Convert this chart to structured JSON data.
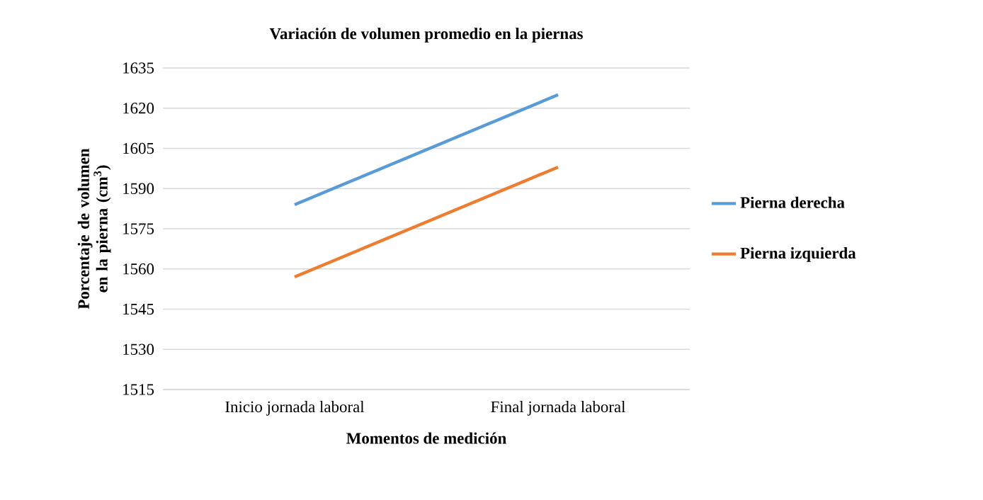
{
  "chart_data": {
    "type": "line",
    "title": "Variación de volumen promedio en la piernas",
    "xlabel": "Momentos de medición",
    "ylabel": "Porcentaje de volumen en la pierna (cm$^{3}$)",
    "categories": [
      "Inicio jornada laboral",
      "Final jornada laboral"
    ],
    "series": [
      {
        "name": "Pierna derecha",
        "color": "#5b9bd5",
        "values": [
          1584,
          1625
        ]
      },
      {
        "name": "Pierna izquierda",
        "color": "#ed7d31",
        "values": [
          1557,
          1598
        ]
      }
    ],
    "ylim": [
      1515,
      1635
    ],
    "yticks": [
      1515,
      1530,
      1545,
      1560,
      1575,
      1590,
      1605,
      1620,
      1635
    ],
    "grid": "y",
    "legend": "right",
    "marker": "none",
    "line_style": "solid"
  }
}
